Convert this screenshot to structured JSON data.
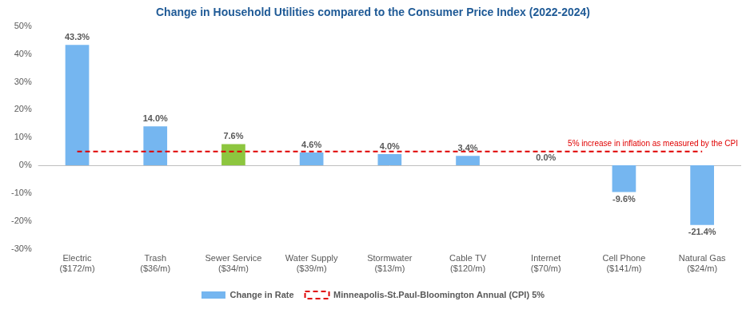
{
  "chart_data": {
    "type": "bar",
    "title": "Change in Household Utilities compared to the Consumer Price Index (2022-2024)",
    "categories": [
      "Electric ($172/m)",
      "Trash ($36/m)",
      "Sewer Service ($34/m)",
      "Water Supply ($39/m)",
      "Stormwater ($13/m)",
      "Cable TV ($120/m)",
      "Internet ($70/m)",
      "Cell Phone ($141/m)",
      "Natural Gas ($24/m)"
    ],
    "series": [
      {
        "name": "Change in Rate",
        "type": "bar",
        "colors": [
          "#75b6f0",
          "#75b6f0",
          "#8dc63f",
          "#75b6f0",
          "#75b6f0",
          "#75b6f0",
          "#75b6f0",
          "#75b6f0",
          "#75b6f0"
        ],
        "values": [
          43.3,
          14.0,
          7.6,
          4.6,
          4.0,
          3.4,
          0.0,
          -9.6,
          -21.4
        ],
        "value_labels": [
          "43.3%",
          "14.0%",
          "7.6%",
          "4.6%",
          "4.0%",
          "3.4%",
          "0.0%",
          "-9.6%",
          "-21.4%"
        ]
      },
      {
        "name": "Minneapolis-St.Paul-Bloomington Annual (CPI) 5%",
        "type": "line",
        "color": "#e00000",
        "line_style": "dashed",
        "marker": "none",
        "values": [
          5,
          5,
          5,
          5,
          5,
          5,
          5,
          5,
          5
        ]
      }
    ],
    "annotations": [
      "5% increase in inflation as measured by the CPI"
    ],
    "ylim": [
      -30,
      50
    ],
    "yticks": [
      {
        "value": -30,
        "label": "-30%"
      },
      {
        "value": -20,
        "label": "-20%"
      },
      {
        "value": -10,
        "label": "-10%"
      },
      {
        "value": 0,
        "label": "0%"
      },
      {
        "value": 10,
        "label": "10%"
      },
      {
        "value": 20,
        "label": "20%"
      },
      {
        "value": 30,
        "label": "30%"
      },
      {
        "value": 40,
        "label": "40%"
      },
      {
        "value": 50,
        "label": "50%"
      }
    ],
    "grid": false,
    "legend": "bottom",
    "data_labels": true
  }
}
